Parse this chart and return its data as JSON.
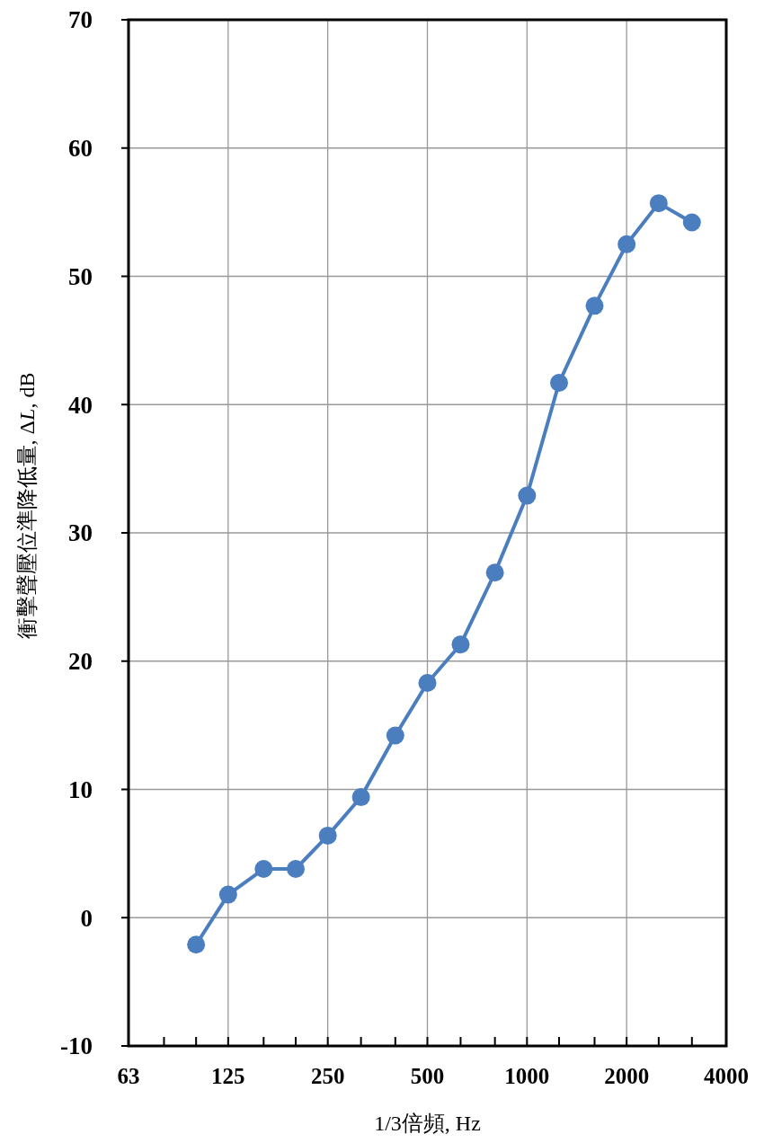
{
  "chart_data": {
    "type": "line",
    "xlabel": "1/3倍頻, Hz",
    "ylabel": "衝擊聲壓位準降低量, ΔL, dB",
    "x": [
      100,
      125,
      160,
      200,
      250,
      315,
      400,
      500,
      630,
      800,
      1000,
      1250,
      1600,
      2000,
      2500,
      3150
    ],
    "series": [
      {
        "color": "#4a7ebf",
        "values": [
          -2.1,
          1.8,
          3.8,
          3.8,
          6.4,
          9.4,
          14.2,
          18.3,
          21.3,
          26.9,
          32.9,
          41.7,
          47.7,
          52.5,
          55.7,
          54.2
        ]
      }
    ],
    "log": "x",
    "xlim": [
      62.5,
      4000
    ],
    "xticks": [
      {
        "value": 62.5,
        "label": "63"
      },
      {
        "value": 80,
        "label": null
      },
      {
        "value": 100,
        "label": null
      },
      125,
      {
        "value": 160,
        "label": null
      },
      {
        "value": 200,
        "label": null
      },
      250,
      {
        "value": 315,
        "label": null
      },
      {
        "value": 400,
        "label": null
      },
      500,
      {
        "value": 630,
        "label": null
      },
      {
        "value": 800,
        "label": null
      },
      1000,
      {
        "value": 1250,
        "label": null
      },
      {
        "value": 1600,
        "label": null
      },
      2000,
      {
        "value": 2500,
        "label": null
      },
      {
        "value": 3150,
        "label": null
      },
      4000
    ],
    "ylim": [
      -10,
      70
    ],
    "yticks": [
      -10,
      0,
      10,
      20,
      30,
      40,
      50,
      60,
      70
    ],
    "grid": true,
    "marker": "circle",
    "line_style": "solid"
  }
}
